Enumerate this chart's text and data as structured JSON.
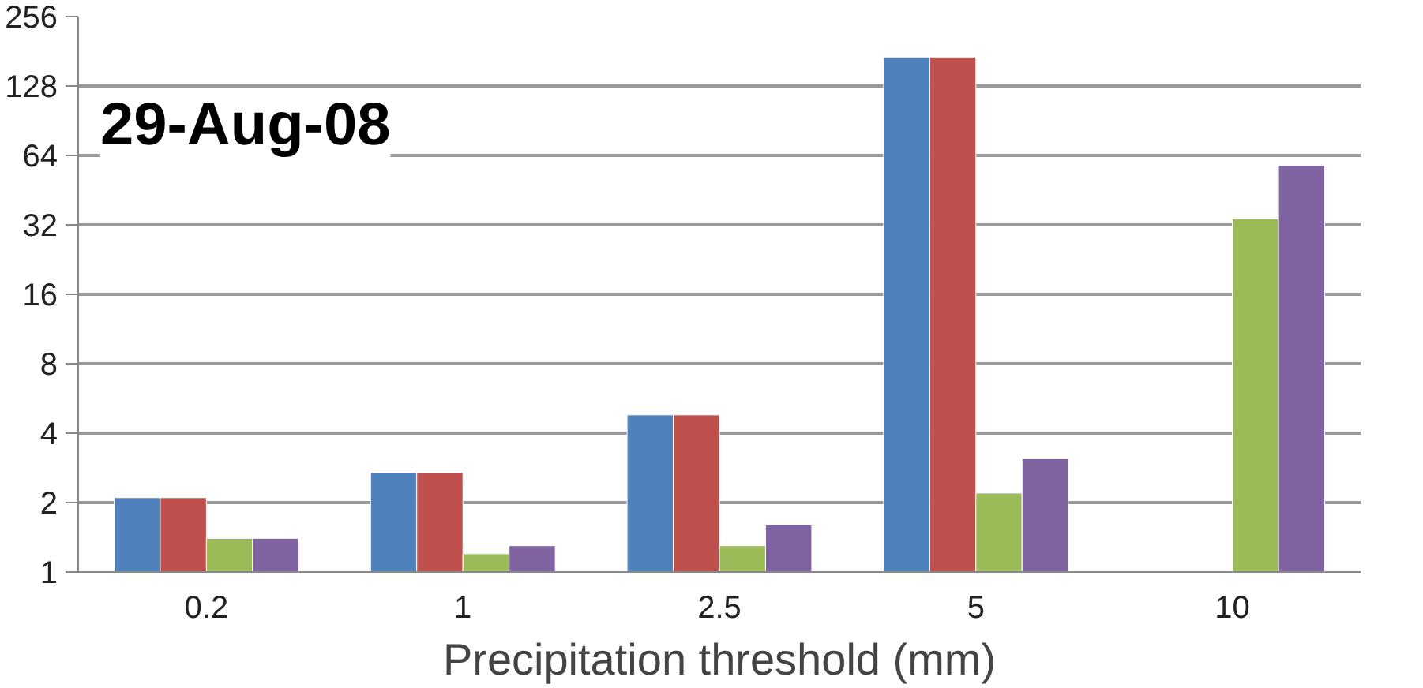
{
  "chart_data": {
    "type": "bar",
    "title": "29-Aug-08",
    "xlabel": "Precipitation threshold (mm)",
    "categories": [
      "0.2",
      "1",
      "2.5",
      "5",
      "10"
    ],
    "series": [
      {
        "color": "#4f81bd",
        "values": [
          2.1,
          2.7,
          4.8,
          171,
          null
        ]
      },
      {
        "color": "#c0504d",
        "values": [
          2.1,
          2.7,
          4.8,
          171,
          null
        ]
      },
      {
        "color": "#9bbb59",
        "values": [
          1.4,
          1.2,
          1.3,
          2.2,
          34
        ]
      },
      {
        "color": "#8064a2",
        "values": [
          1.4,
          1.3,
          1.6,
          3.1,
          58
        ]
      }
    ],
    "log": "y",
    "ylim": [
      1,
      256
    ],
    "yticks": [
      1,
      2,
      4,
      8,
      16,
      32,
      64,
      128,
      256
    ],
    "grid": "y"
  }
}
